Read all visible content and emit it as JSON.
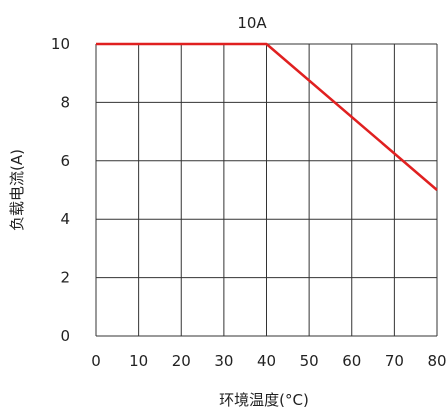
{
  "chart_data": {
    "type": "line",
    "title": "10A",
    "xlabel": "环境温度(°C)",
    "ylabel": "负载电流(A)",
    "xlim": [
      0,
      80
    ],
    "ylim": [
      0,
      10
    ],
    "xticks": [
      0,
      10,
      20,
      30,
      40,
      50,
      60,
      70,
      80
    ],
    "yticks": [
      0,
      2,
      4,
      6,
      8,
      10
    ],
    "xtick_labels": [
      "0",
      "10",
      "20",
      "30",
      "40",
      "50",
      "60",
      "70",
      "80"
    ],
    "ytick_labels": [
      "0",
      "2",
      "4",
      "6",
      "8",
      "10"
    ],
    "grid": true,
    "series": [
      {
        "x": [
          0,
          40,
          80
        ],
        "y": [
          10,
          10,
          5
        ],
        "color": "#e02020"
      }
    ]
  }
}
